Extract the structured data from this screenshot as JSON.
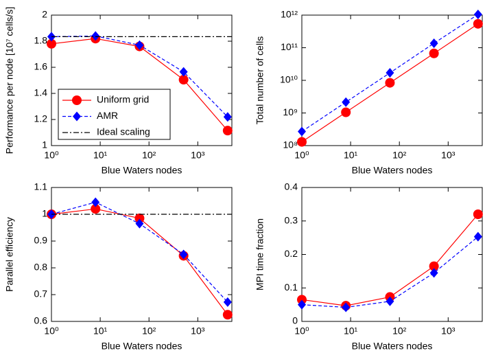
{
  "chart_data": [
    {
      "type": "line",
      "xlabel": "Blue Waters nodes",
      "ylabel": "Performance per node [10⁷ cells/s]",
      "xscale": "log",
      "x": [
        1,
        8,
        64,
        512,
        4096
      ],
      "xlim": [
        1,
        5000
      ],
      "xticks": [
        {
          "value": 1,
          "label": "10⁰"
        },
        {
          "value": 10,
          "label": "10¹"
        },
        {
          "value": 100,
          "label": "10²"
        },
        {
          "value": 1000,
          "label": "10³"
        }
      ],
      "ylim": [
        1,
        2
      ],
      "yticks": [
        1,
        1.2,
        1.4,
        1.6,
        1.8,
        2
      ],
      "legend": "lower left",
      "series": [
        {
          "name": "Uniform grid",
          "color": "#ff0000",
          "marker": "circle",
          "dash": "solid",
          "values": [
            1.78,
            1.82,
            1.76,
            1.505,
            1.115
          ]
        },
        {
          "name": "AMR",
          "color": "#0000ff",
          "marker": "diamond",
          "dash": "dashed",
          "values": [
            1.835,
            1.84,
            1.77,
            1.565,
            1.22
          ]
        },
        {
          "name": "Ideal scaling",
          "color": "#000000",
          "marker": "none",
          "dash": "dashdot",
          "x": [
            1,
            5000
          ],
          "values": [
            1.835,
            1.835
          ]
        }
      ]
    },
    {
      "type": "line",
      "xlabel": "Blue Waters nodes",
      "ylabel": "Total number of cells",
      "xscale": "log",
      "yscale": "log",
      "x": [
        1,
        8,
        64,
        512,
        4096
      ],
      "xlim": [
        1,
        5000
      ],
      "xticks": [
        {
          "value": 1,
          "label": "10⁰"
        },
        {
          "value": 10,
          "label": "10¹"
        },
        {
          "value": 100,
          "label": "10²"
        },
        {
          "value": 1000,
          "label": "10³"
        }
      ],
      "ylim": [
        100000000,
        1000000000000
      ],
      "yticks": [
        {
          "value": 100000000,
          "label": "10⁸"
        },
        {
          "value": 1000000000,
          "label": "10⁹"
        },
        {
          "value": 10000000000,
          "label": "10¹⁰"
        },
        {
          "value": 100000000000,
          "label": "10¹¹"
        },
        {
          "value": 1000000000000,
          "label": "10¹²"
        }
      ],
      "series": [
        {
          "name": "Uniform grid",
          "color": "#ff0000",
          "marker": "circle",
          "dash": "solid",
          "values": [
            130000000,
            1050000000,
            8400000000,
            67000000000,
            540000000000
          ]
        },
        {
          "name": "AMR",
          "color": "#0000ff",
          "marker": "diamond",
          "dash": "dashed",
          "values": [
            270000000,
            2150000000,
            17000000000,
            137000000000,
            1050000000000
          ]
        }
      ]
    },
    {
      "type": "line",
      "xlabel": "Blue Waters nodes",
      "ylabel": "Parallel efficiency",
      "xscale": "log",
      "x": [
        1,
        8,
        64,
        512,
        4096
      ],
      "xlim": [
        1,
        5000
      ],
      "xticks": [
        {
          "value": 1,
          "label": "10⁰"
        },
        {
          "value": 10,
          "label": "10¹"
        },
        {
          "value": 100,
          "label": "10²"
        },
        {
          "value": 1000,
          "label": "10³"
        }
      ],
      "ylim": [
        0.6,
        1.1
      ],
      "yticks": [
        0.6,
        0.7,
        0.8,
        0.9,
        1,
        1.1
      ],
      "series": [
        {
          "name": "Uniform grid",
          "color": "#ff0000",
          "marker": "circle",
          "dash": "solid",
          "values": [
            1,
            1.02,
            0.985,
            0.845,
            0.625
          ]
        },
        {
          "name": "AMR",
          "color": "#0000ff",
          "marker": "diamond",
          "dash": "dashed",
          "values": [
            1,
            1.045,
            0.965,
            0.85,
            0.672
          ]
        },
        {
          "name": "Ideal scaling",
          "color": "#000000",
          "marker": "none",
          "dash": "dashdot",
          "x": [
            1,
            5000
          ],
          "values": [
            1,
            1
          ]
        }
      ]
    },
    {
      "type": "line",
      "xlabel": "Blue Waters nodes",
      "ylabel": "MPI time fraction",
      "xscale": "log",
      "x": [
        1,
        8,
        64,
        512,
        4096
      ],
      "xlim": [
        1,
        5000
      ],
      "xticks": [
        {
          "value": 1,
          "label": "10⁰"
        },
        {
          "value": 10,
          "label": "10¹"
        },
        {
          "value": 100,
          "label": "10²"
        },
        {
          "value": 1000,
          "label": "10³"
        }
      ],
      "ylim": [
        0,
        0.4
      ],
      "yticks": [
        0,
        0.1,
        0.2,
        0.3,
        0.4
      ],
      "series": [
        {
          "name": "Uniform grid",
          "color": "#ff0000",
          "marker": "circle",
          "dash": "solid",
          "values": [
            0.065,
            0.047,
            0.073,
            0.165,
            0.32
          ]
        },
        {
          "name": "AMR",
          "color": "#0000ff",
          "marker": "diamond",
          "dash": "dashed",
          "values": [
            0.05,
            0.042,
            0.06,
            0.145,
            0.253
          ]
        }
      ]
    }
  ]
}
